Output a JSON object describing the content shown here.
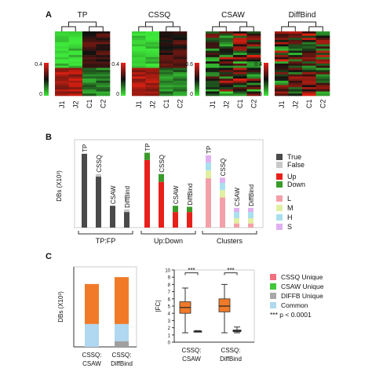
{
  "panels": {
    "A": {
      "label": "A",
      "heatmaps": [
        {
          "title": "TP",
          "scale_max": "0.4",
          "scale_min": "0",
          "columns": [
            "J1",
            "J2",
            "C1",
            "C2"
          ]
        },
        {
          "title": "CSSQ",
          "scale_max": "0.4",
          "scale_min": "0",
          "columns": [
            "J1",
            "J2",
            "C1",
            "C2"
          ]
        },
        {
          "title": "CSAW",
          "scale_max": "0.6",
          "scale_min": "0",
          "columns": [
            "J1",
            "J2",
            "C1",
            "C2"
          ]
        },
        {
          "title": "DiffBind",
          "scale_max": "0.4",
          "scale_min": "0",
          "columns": [
            "J1",
            "J2",
            "C1",
            "C2"
          ]
        }
      ],
      "colors": {
        "high": "#e8201a",
        "mid": "#111111",
        "low": "#3ee83a"
      }
    },
    "B": {
      "label": "B"
    },
    "C": {
      "label": "C"
    }
  },
  "chart_data": [
    {
      "type": "bar",
      "panel": "B",
      "ylabel": "DBs (X10³)",
      "ylim": [
        0,
        1.6
      ],
      "yticks": [
        "0",
        "0.2",
        "0.4",
        "0.6",
        "0.8",
        "1",
        "1.2",
        "1.4",
        "1.6"
      ],
      "groups": [
        {
          "label": "TP:FP",
          "bars": [
            {
              "label": "TP",
              "segments": [
                {
                  "name": "True",
                  "value": 1.42
                },
                {
                  "name": "False",
                  "value": 0.0
                }
              ]
            },
            {
              "label": "CSSQ",
              "segments": [
                {
                  "name": "True",
                  "value": 0.98
                },
                {
                  "name": "False",
                  "value": 0.05
                }
              ]
            },
            {
              "label": "CSAW",
              "segments": [
                {
                  "name": "True",
                  "value": 0.42
                },
                {
                  "name": "False",
                  "value": 0.0
                }
              ]
            },
            {
              "label": "DiffBind",
              "segments": [
                {
                  "name": "True",
                  "value": 0.3
                },
                {
                  "name": "False",
                  "value": 0.05
                }
              ]
            }
          ]
        },
        {
          "label": "Up:Down",
          "bars": [
            {
              "label": "TP",
              "segments": [
                {
                  "name": "Up",
                  "value": 1.3
                },
                {
                  "name": "Down",
                  "value": 0.14
                }
              ]
            },
            {
              "label": "CSSQ",
              "segments": [
                {
                  "name": "Up",
                  "value": 0.88
                },
                {
                  "name": "Down",
                  "value": 0.15
                }
              ]
            },
            {
              "label": "CSAW",
              "segments": [
                {
                  "name": "Up",
                  "value": 0.3
                },
                {
                  "name": "Down",
                  "value": 0.12
                }
              ]
            },
            {
              "label": "DiffBind",
              "segments": [
                {
                  "name": "Up",
                  "value": 0.3
                },
                {
                  "name": "Down",
                  "value": 0.1
                }
              ]
            }
          ]
        },
        {
          "label": "Clusters",
          "bars": [
            {
              "label": "TP",
              "segments": [
                {
                  "name": "L",
                  "value": 0.95
                },
                {
                  "name": "M",
                  "value": 0.15
                },
                {
                  "name": "H",
                  "value": 0.15
                },
                {
                  "name": "S",
                  "value": 0.14
                }
              ]
            },
            {
              "label": "CSSQ",
              "segments": [
                {
                  "name": "L",
                  "value": 0.58
                },
                {
                  "name": "M",
                  "value": 0.14
                },
                {
                  "name": "H",
                  "value": 0.14
                },
                {
                  "name": "S",
                  "value": 0.1
                }
              ]
            },
            {
              "label": "CSAW",
              "segments": [
                {
                  "name": "L",
                  "value": 0.08
                },
                {
                  "name": "M",
                  "value": 0.1
                },
                {
                  "name": "H",
                  "value": 0.12
                },
                {
                  "name": "S",
                  "value": 0.08
                }
              ]
            },
            {
              "label": "DiffBind",
              "segments": [
                {
                  "name": "L",
                  "value": 0.08
                },
                {
                  "name": "M",
                  "value": 0.1
                },
                {
                  "name": "H",
                  "value": 0.12
                },
                {
                  "name": "S",
                  "value": 0.08
                }
              ]
            }
          ]
        }
      ],
      "legend": [
        {
          "name": "True",
          "color": "#4a4a4a"
        },
        {
          "name": "False",
          "color": "#c8c8c8"
        },
        {
          "name": "Up",
          "color": "#e8201a"
        },
        {
          "name": "Down",
          "color": "#3a9a2a"
        },
        {
          "name": "L",
          "color": "#f4a0a8"
        },
        {
          "name": "M",
          "color": "#e0f0a0"
        },
        {
          "name": "H",
          "color": "#a8e0f0"
        },
        {
          "name": "S",
          "color": "#e0b0f0"
        }
      ]
    },
    {
      "type": "bar",
      "panel": "C",
      "ylabel": "DBs (X10³)",
      "ylim": [
        0,
        1.4
      ],
      "yticks": [
        "0",
        "0.2",
        "0.4",
        "0.6",
        "0.8",
        "1",
        "1.2",
        "1.4"
      ],
      "bars": [
        {
          "label": "CSSQ:\nCSAW",
          "segments": [
            {
              "name": "Common",
              "value": 0.4
            },
            {
              "name": "Other",
              "value": 0.7
            }
          ]
        },
        {
          "label": "CSSQ:\nDiffBind",
          "segments": [
            {
              "name": "DIFFB Unique",
              "value": 0.1
            },
            {
              "name": "Common",
              "value": 0.3
            },
            {
              "name": "Other",
              "value": 0.82
            }
          ]
        }
      ],
      "colors": {
        "Common": "#b0d8f0",
        "Other": "#f07a28",
        "DIFFB Unique": "#a0a0a0"
      }
    },
    {
      "type": "box",
      "panel": "C",
      "ylabel": "|FC|",
      "ylim": [
        0,
        10
      ],
      "yticks": [
        "0",
        "1",
        "2",
        "3",
        "4",
        "5",
        "6",
        "7",
        "8",
        "9",
        "10"
      ],
      "significance": [
        "***",
        "***"
      ],
      "groups": [
        {
          "label": "CSSQ:\nCSAW",
          "boxes": [
            {
              "name": "CSSQ Unique",
              "min": 1.3,
              "q1": 4.0,
              "median": 4.8,
              "q3": 5.6,
              "max": 7.5,
              "color": "#f07a28"
            },
            {
              "name": "CSAW Unique",
              "min": 1.4,
              "q1": 1.45,
              "median": 1.5,
              "q3": 1.55,
              "max": 1.6,
              "color": "#808080"
            }
          ]
        },
        {
          "label": "CSSQ:\nDiffBind",
          "boxes": [
            {
              "name": "CSSQ Unique",
              "min": 1.3,
              "q1": 4.2,
              "median": 5.0,
              "q3": 6.0,
              "max": 8.0,
              "color": "#f07a28"
            },
            {
              "name": "DIFFB Unique",
              "min": 1.3,
              "q1": 1.45,
              "median": 1.55,
              "q3": 1.7,
              "max": 2.1,
              "color": "#808080"
            }
          ]
        }
      ],
      "legend": [
        {
          "name": "CSSQ Unique",
          "color": "#f07080"
        },
        {
          "name": "CSAW Unique",
          "color": "#40c838"
        },
        {
          "name": "DIFFB Unique",
          "color": "#a8a8a8"
        },
        {
          "name": "Common",
          "color": "#b0d8f0"
        }
      ],
      "note": "*** p < 0.0001"
    }
  ]
}
